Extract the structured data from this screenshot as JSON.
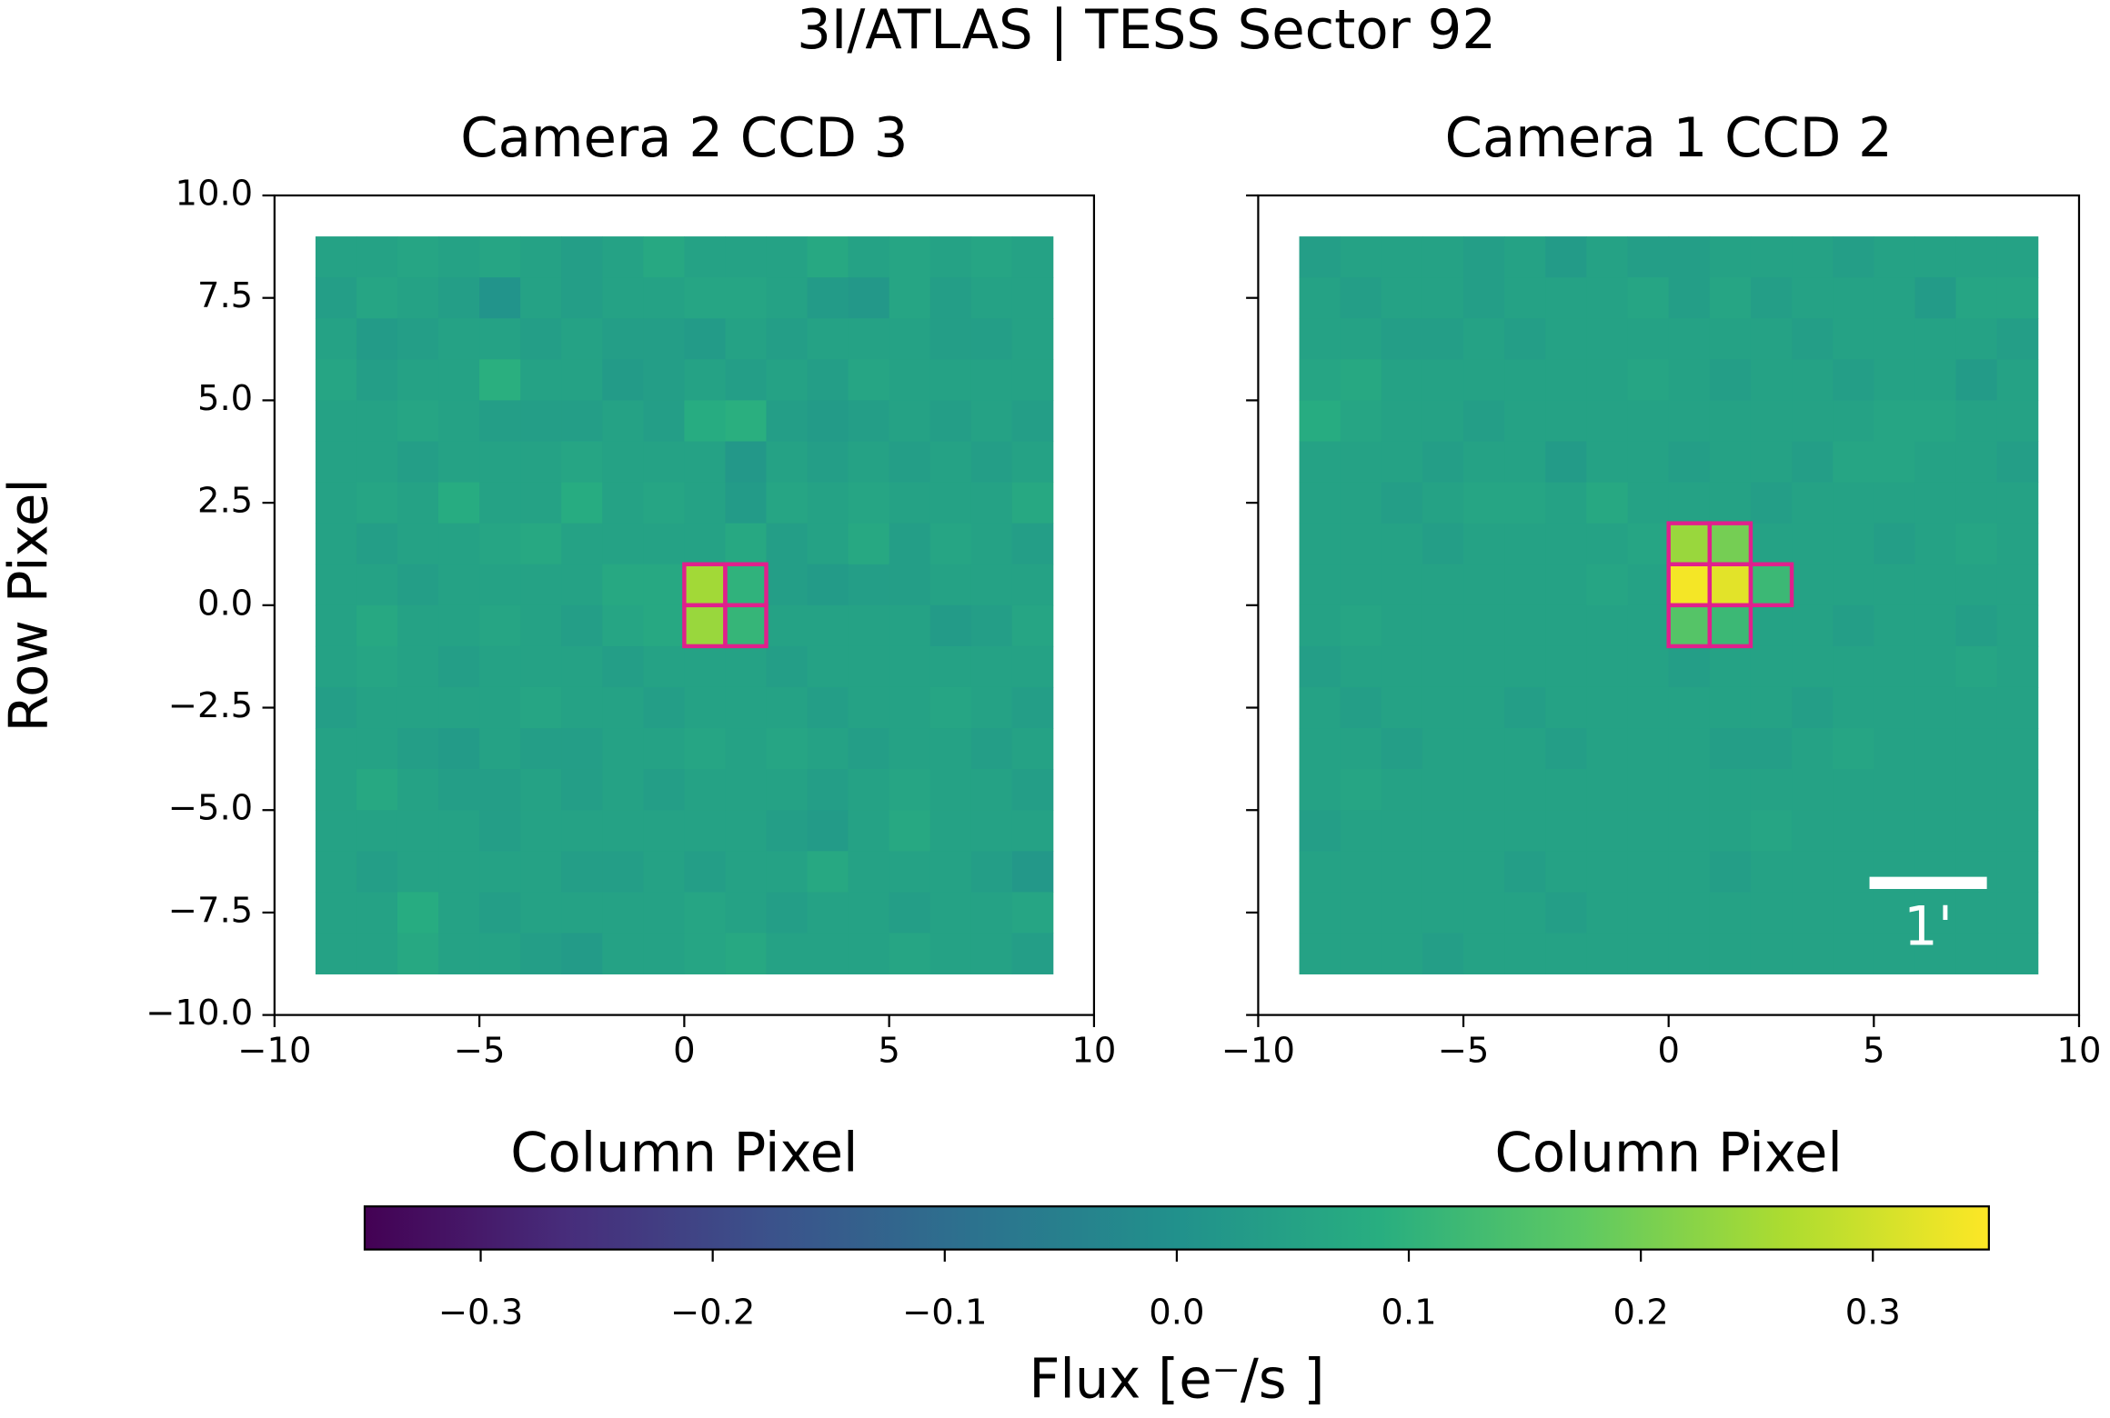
{
  "title": "3I/ATLAS | TESS Sector 92",
  "colorbar": {
    "label": "Flux [e⁻/s ]",
    "lim": [
      -0.35,
      0.35
    ],
    "ticks": [
      {
        "value": -0.3,
        "label": "−0.3"
      },
      {
        "value": -0.2,
        "label": "−0.2"
      },
      {
        "value": -0.1,
        "label": "−0.1"
      },
      {
        "value": 0,
        "label": "0.0"
      },
      0.1,
      0.2,
      0.3
    ],
    "colormap": [
      "#440154",
      "#472d7b",
      "#3b528b",
      "#2c728e",
      "#21918c",
      "#28ae80",
      "#5ec962",
      "#addc30",
      "#fde725"
    ]
  },
  "chart_data": [
    {
      "type": "heatmap",
      "title": "Camera 2 CCD 3",
      "xlabel": "Column Pixel",
      "ylabel": "Row Pixel",
      "xlim": [
        -10,
        10
      ],
      "ylim": [
        -10,
        10
      ],
      "extent": [
        -9,
        9,
        -9,
        9
      ],
      "xticks": [
        {
          "value": -10,
          "label": "−10"
        },
        {
          "value": -5,
          "label": "−5"
        },
        0,
        5,
        10
      ],
      "yticks": [
        {
          "value": -10,
          "label": "−10.0"
        },
        {
          "value": -7.5,
          "label": "−7.5"
        },
        {
          "value": -5,
          "label": "−5.0"
        },
        {
          "value": -2.5,
          "label": "−2.5"
        },
        {
          "value": 0,
          "label": "0.0"
        },
        2.5,
        {
          "value": 5,
          "label": "5.0"
        },
        7.5,
        {
          "value": 10,
          "label": "10.0"
        }
      ],
      "aperture_color": "#e0208c",
      "aperture": [
        [
          8,
          9
        ],
        [
          8,
          10
        ],
        [
          9,
          9
        ],
        [
          9,
          10
        ]
      ],
      "values": [
        [
          0.05,
          0.05,
          0.06,
          0.05,
          0.06,
          0.05,
          0.04,
          0.05,
          0.07,
          0.05,
          0.05,
          0.05,
          0.07,
          0.05,
          0.06,
          0.05,
          0.06,
          0.05
        ],
        [
          0.04,
          0.06,
          0.05,
          0.04,
          0.01,
          0.05,
          0.04,
          0.05,
          0.05,
          0.06,
          0.06,
          0.05,
          0.03,
          0.02,
          0.06,
          0.04,
          0.05,
          0.05
        ],
        [
          0.05,
          0.03,
          0.04,
          0.05,
          0.05,
          0.04,
          0.05,
          0.04,
          0.04,
          0.03,
          0.05,
          0.04,
          0.05,
          0.05,
          0.05,
          0.04,
          0.04,
          0.05
        ],
        [
          0.06,
          0.04,
          0.05,
          0.05,
          0.09,
          0.05,
          0.05,
          0.03,
          0.04,
          0.05,
          0.04,
          0.05,
          0.04,
          0.06,
          0.05,
          0.05,
          0.05,
          0.05
        ],
        [
          0.05,
          0.05,
          0.06,
          0.05,
          0.04,
          0.04,
          0.04,
          0.05,
          0.04,
          0.08,
          0.09,
          0.04,
          0.03,
          0.04,
          0.05,
          0.04,
          0.05,
          0.04
        ],
        [
          0.05,
          0.05,
          0.04,
          0.05,
          0.05,
          0.05,
          0.06,
          0.05,
          0.05,
          0.05,
          0.02,
          0.05,
          0.04,
          0.05,
          0.04,
          0.05,
          0.04,
          0.05
        ],
        [
          0.05,
          0.06,
          0.05,
          0.08,
          0.05,
          0.05,
          0.08,
          0.05,
          0.06,
          0.05,
          0.03,
          0.06,
          0.05,
          0.06,
          0.05,
          0.05,
          0.05,
          0.07
        ],
        [
          0.05,
          0.04,
          0.05,
          0.05,
          0.06,
          0.07,
          0.05,
          0.05,
          0.05,
          0.05,
          0.07,
          0.04,
          0.05,
          0.07,
          0.04,
          0.06,
          0.05,
          0.04
        ],
        [
          0.05,
          0.05,
          0.04,
          0.05,
          0.05,
          0.05,
          0.05,
          0.07,
          0.07,
          0.25,
          0.1,
          0.04,
          0.03,
          0.04,
          0.04,
          0.05,
          0.05,
          0.05
        ],
        [
          0.05,
          0.07,
          0.05,
          0.05,
          0.06,
          0.05,
          0.04,
          0.06,
          0.07,
          0.24,
          0.11,
          0.05,
          0.05,
          0.05,
          0.05,
          0.03,
          0.04,
          0.06
        ],
        [
          0.05,
          0.06,
          0.05,
          0.04,
          0.05,
          0.05,
          0.05,
          0.04,
          0.05,
          0.05,
          0.05,
          0.04,
          0.05,
          0.05,
          0.05,
          0.05,
          0.05,
          0.05
        ],
        [
          0.04,
          0.05,
          0.05,
          0.05,
          0.05,
          0.06,
          0.05,
          0.05,
          0.04,
          0.05,
          0.05,
          0.05,
          0.04,
          0.05,
          0.05,
          0.06,
          0.05,
          0.04
        ],
        [
          0.05,
          0.05,
          0.04,
          0.03,
          0.05,
          0.04,
          0.04,
          0.05,
          0.05,
          0.06,
          0.05,
          0.06,
          0.05,
          0.04,
          0.05,
          0.05,
          0.04,
          0.05
        ],
        [
          0.05,
          0.07,
          0.05,
          0.04,
          0.04,
          0.05,
          0.04,
          0.05,
          0.04,
          0.05,
          0.05,
          0.05,
          0.04,
          0.05,
          0.06,
          0.05,
          0.05,
          0.04
        ],
        [
          0.05,
          0.05,
          0.05,
          0.05,
          0.04,
          0.05,
          0.05,
          0.05,
          0.05,
          0.05,
          0.05,
          0.04,
          0.03,
          0.05,
          0.07,
          0.05,
          0.05,
          0.05
        ],
        [
          0.05,
          0.04,
          0.05,
          0.05,
          0.05,
          0.05,
          0.04,
          0.04,
          0.05,
          0.04,
          0.05,
          0.05,
          0.07,
          0.05,
          0.05,
          0.05,
          0.04,
          0.02
        ],
        [
          0.05,
          0.05,
          0.08,
          0.05,
          0.04,
          0.05,
          0.05,
          0.05,
          0.05,
          0.06,
          0.05,
          0.04,
          0.05,
          0.05,
          0.04,
          0.05,
          0.05,
          0.06
        ],
        [
          0.05,
          0.05,
          0.07,
          0.05,
          0.05,
          0.04,
          0.03,
          0.05,
          0.05,
          0.06,
          0.07,
          0.05,
          0.05,
          0.05,
          0.06,
          0.05,
          0.05,
          0.04
        ]
      ]
    },
    {
      "type": "heatmap",
      "title": "Camera 1 CCD 2",
      "xlabel": "Column Pixel",
      "xlim": [
        -10,
        10
      ],
      "ylim": [
        -10,
        10
      ],
      "extent": [
        -9,
        9,
        -9,
        9
      ],
      "xticks": [
        {
          "value": -10,
          "label": "−10"
        },
        {
          "value": -5,
          "label": "−5"
        },
        0,
        5,
        10
      ],
      "yticks": [
        -10,
        -7.5,
        -5,
        -2.5,
        0,
        2.5,
        5,
        7.5,
        10
      ],
      "aperture_color": "#e0208c",
      "aperture": [
        [
          7,
          9
        ],
        [
          7,
          10
        ],
        [
          8,
          9
        ],
        [
          8,
          10
        ],
        [
          8,
          11
        ],
        [
          9,
          9
        ],
        [
          9,
          10
        ]
      ],
      "scalebar": {
        "label": "1'",
        "length": 2.86
      },
      "values": [
        [
          0.04,
          0.05,
          0.05,
          0.05,
          0.04,
          0.05,
          0.03,
          0.05,
          0.04,
          0.04,
          0.05,
          0.05,
          0.05,
          0.04,
          0.05,
          0.05,
          0.05,
          0.05
        ],
        [
          0.05,
          0.04,
          0.05,
          0.05,
          0.04,
          0.05,
          0.05,
          0.05,
          0.06,
          0.04,
          0.06,
          0.04,
          0.05,
          0.05,
          0.05,
          0.03,
          0.06,
          0.06
        ],
        [
          0.05,
          0.05,
          0.04,
          0.04,
          0.05,
          0.04,
          0.05,
          0.05,
          0.05,
          0.05,
          0.05,
          0.05,
          0.04,
          0.05,
          0.05,
          0.05,
          0.05,
          0.04
        ],
        [
          0.06,
          0.07,
          0.05,
          0.05,
          0.05,
          0.05,
          0.05,
          0.05,
          0.06,
          0.05,
          0.04,
          0.05,
          0.05,
          0.04,
          0.05,
          0.05,
          0.03,
          0.05
        ],
        [
          0.08,
          0.06,
          0.05,
          0.05,
          0.04,
          0.05,
          0.05,
          0.05,
          0.05,
          0.05,
          0.05,
          0.05,
          0.05,
          0.05,
          0.06,
          0.06,
          0.05,
          0.05
        ],
        [
          0.05,
          0.05,
          0.05,
          0.04,
          0.05,
          0.05,
          0.03,
          0.05,
          0.05,
          0.04,
          0.05,
          0.05,
          0.04,
          0.06,
          0.06,
          0.05,
          0.05,
          0.04
        ],
        [
          0.05,
          0.05,
          0.04,
          0.05,
          0.06,
          0.06,
          0.05,
          0.07,
          0.05,
          0.05,
          0.05,
          0.04,
          0.05,
          0.05,
          0.05,
          0.05,
          0.05,
          0.05
        ],
        [
          0.05,
          0.05,
          0.05,
          0.04,
          0.05,
          0.05,
          0.05,
          0.05,
          0.06,
          0.24,
          0.2,
          0.05,
          0.05,
          0.05,
          0.04,
          0.05,
          0.06,
          0.05
        ],
        [
          0.05,
          0.05,
          0.05,
          0.05,
          0.05,
          0.05,
          0.05,
          0.06,
          0.05,
          0.34,
          0.32,
          0.12,
          0.05,
          0.05,
          0.05,
          0.05,
          0.05,
          0.05
        ],
        [
          0.05,
          0.06,
          0.05,
          0.05,
          0.05,
          0.05,
          0.05,
          0.05,
          0.05,
          0.16,
          0.12,
          0.05,
          0.05,
          0.04,
          0.05,
          0.05,
          0.04,
          0.05
        ],
        [
          0.04,
          0.05,
          0.05,
          0.05,
          0.05,
          0.05,
          0.05,
          0.05,
          0.05,
          0.04,
          0.05,
          0.05,
          0.05,
          0.05,
          0.05,
          0.05,
          0.06,
          0.05
        ],
        [
          0.05,
          0.04,
          0.05,
          0.05,
          0.05,
          0.04,
          0.05,
          0.05,
          0.05,
          0.05,
          0.05,
          0.05,
          0.04,
          0.05,
          0.05,
          0.05,
          0.05,
          0.05
        ],
        [
          0.05,
          0.05,
          0.04,
          0.05,
          0.05,
          0.05,
          0.04,
          0.05,
          0.05,
          0.05,
          0.04,
          0.04,
          0.05,
          0.06,
          0.05,
          0.05,
          0.05,
          0.05
        ],
        [
          0.05,
          0.06,
          0.05,
          0.05,
          0.05,
          0.05,
          0.05,
          0.05,
          0.05,
          0.05,
          0.05,
          0.05,
          0.05,
          0.05,
          0.05,
          0.05,
          0.05,
          0.05
        ],
        [
          0.04,
          0.05,
          0.05,
          0.05,
          0.05,
          0.05,
          0.05,
          0.05,
          0.05,
          0.05,
          0.05,
          0.06,
          0.05,
          0.05,
          0.05,
          0.05,
          0.05,
          0.05
        ],
        [
          0.05,
          0.05,
          0.05,
          0.05,
          0.05,
          0.04,
          0.05,
          0.05,
          0.05,
          0.05,
          0.04,
          0.05,
          0.05,
          0.05,
          0.05,
          0.05,
          0.05,
          0.05
        ],
        [
          0.05,
          0.05,
          0.05,
          0.05,
          0.05,
          0.05,
          0.04,
          0.05,
          0.05,
          0.05,
          0.05,
          0.05,
          0.05,
          0.05,
          0.05,
          0.05,
          0.05,
          0.05
        ],
        [
          0.05,
          0.05,
          0.05,
          0.04,
          0.05,
          0.05,
          0.05,
          0.05,
          0.05,
          0.05,
          0.05,
          0.05,
          0.05,
          0.05,
          0.05,
          0.05,
          0.05,
          0.05
        ]
      ]
    }
  ]
}
